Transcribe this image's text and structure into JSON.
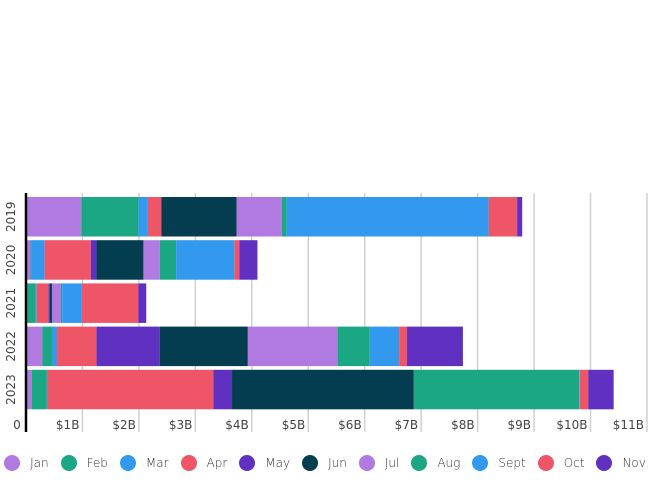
{
  "chart_data": {
    "type": "bar",
    "orientation": "horizontal",
    "stacked": true,
    "categories": [
      "2019",
      "2020",
      "2021",
      "2022",
      "2023"
    ],
    "xlim": [
      0,
      11
    ],
    "xticks": [
      "0",
      "$1B",
      "$2B",
      "$3B",
      "$4B",
      "$5B",
      "$6B",
      "$7B",
      "$8B",
      "$9B",
      "$10B",
      "$11B"
    ],
    "grid": "vertical",
    "legend_position": "bottom",
    "series": [
      {
        "name": "Jan",
        "color": "#b07ae0",
        "values": [
          0.98,
          0.08,
          0.02,
          0.29,
          0.1
        ]
      },
      {
        "name": "Feb",
        "color": "#1ba784",
        "values": [
          1.01,
          0.02,
          0.15,
          0.17,
          0.27
        ]
      },
      {
        "name": "Mar",
        "color": "#3399ee",
        "values": [
          0.17,
          0.23,
          0.02,
          0.09,
          0.01
        ]
      },
      {
        "name": "Apr",
        "color": "#ee5566",
        "values": [
          0.24,
          0.82,
          0.21,
          0.7,
          2.94
        ]
      },
      {
        "name": "May",
        "color": "#6030c0",
        "values": [
          0.0,
          0.1,
          0.02,
          1.12,
          0.33
        ]
      },
      {
        "name": "Jun",
        "color": "#033d4f",
        "values": [
          1.33,
          0.83,
          0.04,
          1.56,
          3.22
        ]
      },
      {
        "name": "Jul",
        "color": "#b07ae0",
        "values": [
          0.8,
          0.29,
          0.16,
          1.59,
          0.0
        ]
      },
      {
        "name": "Aug",
        "color": "#1ba784",
        "values": [
          0.09,
          0.29,
          0.02,
          0.57,
          2.93
        ]
      },
      {
        "name": "Sept",
        "color": "#3399ee",
        "values": [
          3.58,
          1.03,
          0.35,
          0.52,
          0.01
        ]
      },
      {
        "name": "Oct",
        "color": "#ee5566",
        "values": [
          0.5,
          0.09,
          1.0,
          0.14,
          0.15
        ]
      },
      {
        "name": "Nov",
        "color": "#6030c0",
        "values": [
          0.09,
          0.32,
          0.14,
          0.99,
          0.45
        ]
      }
    ]
  }
}
